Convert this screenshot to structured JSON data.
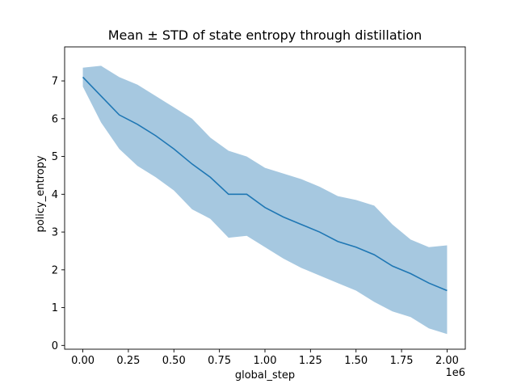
{
  "chart_data": {
    "type": "line",
    "title": "Mean ± STD of state entropy through distillation",
    "xlabel": "global_step",
    "ylabel": "policy_entropy",
    "x_offset_label": "1e6",
    "xlim": [
      -0.1,
      2.1
    ],
    "ylim": [
      -0.1,
      7.9
    ],
    "x_ticks": [
      0.0,
      0.25,
      0.5,
      0.75,
      1.0,
      1.25,
      1.5,
      1.75,
      2.0
    ],
    "x_tick_labels": [
      "0.00",
      "0.25",
      "0.50",
      "0.75",
      "1.00",
      "1.25",
      "1.50",
      "1.75",
      "2.00"
    ],
    "y_ticks": [
      0,
      1,
      2,
      3,
      4,
      5,
      6,
      7
    ],
    "y_tick_labels": [
      "0",
      "1",
      "2",
      "3",
      "4",
      "5",
      "6",
      "7"
    ],
    "grid": false,
    "series": [
      {
        "name": "policy_entropy",
        "color": "#1f77b4",
        "band_color": "#a6c8e0",
        "x": [
          0.0,
          0.1,
          0.2,
          0.3,
          0.4,
          0.5,
          0.6,
          0.7,
          0.8,
          0.9,
          1.0,
          1.1,
          1.2,
          1.3,
          1.4,
          1.5,
          1.6,
          1.7,
          1.8,
          1.9,
          2.0
        ],
        "mean": [
          7.1,
          6.6,
          6.1,
          5.85,
          5.55,
          5.2,
          4.8,
          4.45,
          4.0,
          4.0,
          3.65,
          3.4,
          3.2,
          3.0,
          2.75,
          2.6,
          2.4,
          2.1,
          1.9,
          1.65,
          1.45
        ],
        "upper": [
          7.35,
          7.4,
          7.1,
          6.9,
          6.6,
          6.3,
          6.0,
          5.5,
          5.15,
          5.0,
          4.7,
          4.55,
          4.4,
          4.2,
          3.95,
          3.85,
          3.7,
          3.2,
          2.8,
          2.6,
          2.65
        ],
        "lower": [
          6.85,
          5.9,
          5.2,
          4.75,
          4.45,
          4.1,
          3.6,
          3.35,
          2.85,
          2.9,
          2.6,
          2.3,
          2.05,
          1.85,
          1.65,
          1.45,
          1.15,
          0.9,
          0.75,
          0.45,
          0.3
        ]
      }
    ]
  }
}
